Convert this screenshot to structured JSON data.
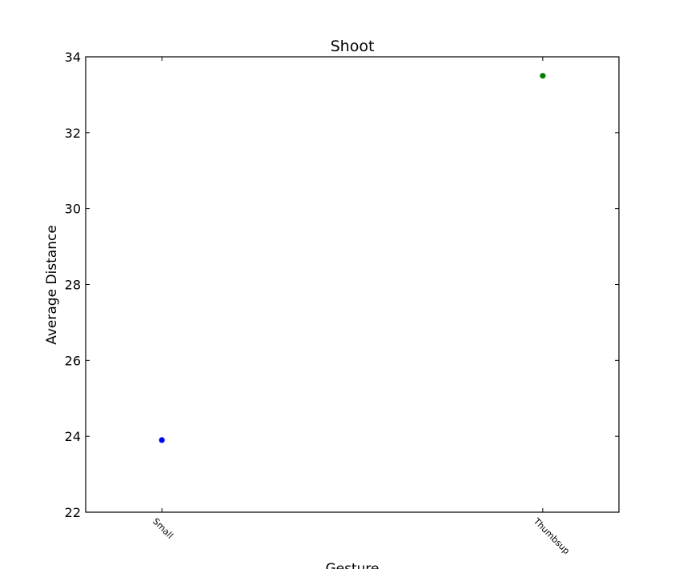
{
  "chart_data": {
    "type": "scatter",
    "title": "Shoot",
    "xlabel": "Gesture",
    "ylabel": "Average Distance",
    "categories": [
      "Small",
      "Thumbsup"
    ],
    "points": [
      {
        "category": "Small",
        "value": 23.9,
        "color": "#0000ff"
      },
      {
        "category": "Thumbsup",
        "value": 33.5,
        "color": "#008000"
      }
    ],
    "ylim": [
      22,
      34
    ],
    "yticks": [
      "22",
      "24",
      "26",
      "28",
      "30",
      "32",
      "34"
    ],
    "grid": false,
    "legend": "none"
  }
}
